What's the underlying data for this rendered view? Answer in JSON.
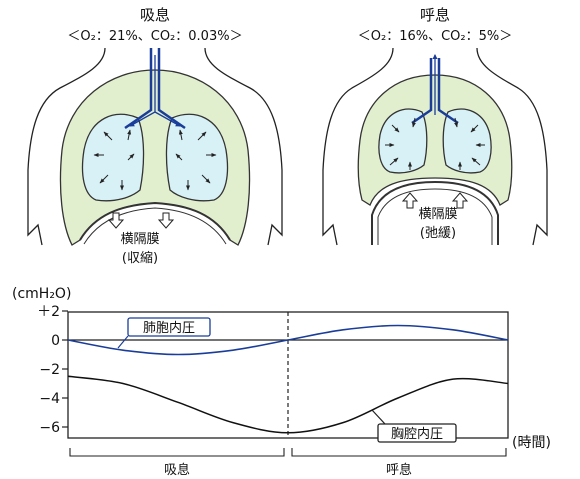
{
  "inhale_panel": {
    "title": "吸息",
    "composition": "＜O₂：21%、CO₂：0.03%＞",
    "diaphragm_label": "横隔膜",
    "diaphragm_state": "(収縮)"
  },
  "exhale_panel": {
    "title": "呼息",
    "composition": "＜O₂：16%、CO₂：5%＞",
    "diaphragm_label": "横隔膜",
    "diaphragm_state": "(弛緩)"
  },
  "graph": {
    "unit_label": "(cmH₂O)",
    "x_unit_label": "(時間)",
    "y_ticks": [
      {
        "value": 2,
        "label": "＋2"
      },
      {
        "value": 0,
        "label": "0"
      },
      {
        "value": -2,
        "label": "−2"
      },
      {
        "value": -4,
        "label": "−4"
      },
      {
        "value": -6,
        "label": "−6"
      }
    ],
    "phase_inhale_label": "吸息",
    "phase_exhale_label": "呼息",
    "callout_alveolar": "肺胞内圧",
    "callout_pleural": "胸腔内圧"
  },
  "chart_data": {
    "type": "line",
    "ylabel": "(cmH₂O)",
    "xlabel": "(時間)",
    "ylim": [
      -7,
      2
    ],
    "grid": false,
    "x": [
      0,
      0.125,
      0.25,
      0.375,
      0.5,
      0.625,
      0.75,
      0.875,
      1
    ],
    "series": [
      {
        "name": "肺胞内圧",
        "color": "#1a3d9a",
        "values": [
          0,
          -0.7,
          -1.0,
          -0.7,
          0,
          0.7,
          1.0,
          0.7,
          0
        ]
      },
      {
        "name": "胸腔内圧",
        "color": "#111111",
        "values": [
          -2.5,
          -3.0,
          -4.3,
          -5.7,
          -6.4,
          -5.7,
          -4.0,
          -2.7,
          -3.0
        ]
      }
    ]
  }
}
